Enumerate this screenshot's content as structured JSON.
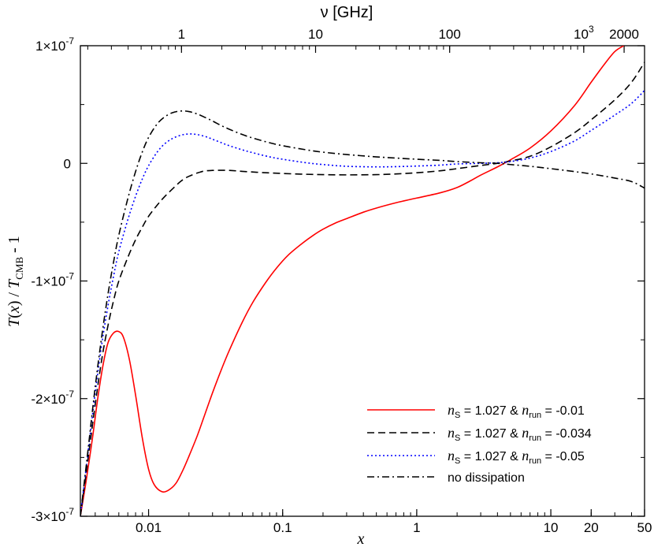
{
  "chart_data": {
    "type": "line",
    "title": "",
    "top_axis_title": "ν  [GHz]",
    "xlabel": "x",
    "ylabel": "T(x) / T_CMB - 1",
    "ylabel_parts": {
      "t": "T",
      "open": "(",
      "x": "x",
      "close": ")",
      "slash": " / ",
      "t2": "T",
      "sub": "CMB",
      "tail": " - 1"
    },
    "x_scale": "log",
    "xlim": [
      0.0031,
      50
    ],
    "ylim": [
      -3e-07,
      1e-07
    ],
    "x_ticks": [
      {
        "value": 0.01,
        "label": "0.01"
      },
      {
        "value": 0.1,
        "label": "0.1"
      },
      {
        "value": 1,
        "label": "1"
      },
      {
        "value": 10,
        "label": "10"
      },
      {
        "value": 20,
        "label": "20"
      },
      {
        "value": 50,
        "label": "50"
      }
    ],
    "y_ticks": [
      {
        "value": 1e-07,
        "base": "1×10",
        "exp": "-7"
      },
      {
        "value": 0,
        "base": "0",
        "exp": ""
      },
      {
        "value": -1e-07,
        "base": "-1×10",
        "exp": "-7"
      },
      {
        "value": -2e-07,
        "base": "-2×10",
        "exp": "-7"
      },
      {
        "value": -3e-07,
        "base": "-3×10",
        "exp": "-7"
      }
    ],
    "top_ticks": [
      {
        "x_value": 0.0176,
        "base": "1",
        "exp": ""
      },
      {
        "x_value": 0.176,
        "base": "10",
        "exp": ""
      },
      {
        "x_value": 1.76,
        "base": "100",
        "exp": ""
      },
      {
        "x_value": 17.6,
        "base": "10",
        "exp": "3"
      },
      {
        "x_value": 35.2,
        "base": "2000",
        "exp": ""
      }
    ],
    "series": [
      {
        "name": "n_S = 1.027 & n_run = -0.01",
        "label_parts": {
          "n1": "n",
          "s1": "S",
          "mid": " = 1.027 & ",
          "n2": "n",
          "s2": "run",
          "tail": " = -0.01"
        },
        "color": "#ff0000",
        "dash": "",
        "x": [
          0.0031,
          0.0034,
          0.0038,
          0.0042,
          0.0046,
          0.005,
          0.0055,
          0.006,
          0.0065,
          0.0072,
          0.008,
          0.009,
          0.01,
          0.011,
          0.0125,
          0.014,
          0.016,
          0.018,
          0.02,
          0.023,
          0.026,
          0.03,
          0.035,
          0.04,
          0.05,
          0.06,
          0.075,
          0.09,
          0.11,
          0.14,
          0.17,
          0.2,
          0.25,
          0.3,
          0.4,
          0.5,
          0.7,
          1.0,
          1.5,
          2.0,
          2.5,
          3.0,
          4.0,
          5.0,
          7.0,
          10.0,
          15.0,
          20.0,
          25.0,
          30.0,
          35.0
        ],
        "y": [
          -3e-07,
          -2.72e-07,
          -2.35e-07,
          -1.98e-07,
          -1.7e-07,
          -1.52e-07,
          -1.44e-07,
          -1.43e-07,
          -1.48e-07,
          -1.67e-07,
          -1.97e-07,
          -2.34e-07,
          -2.6e-07,
          -2.73e-07,
          -2.79e-07,
          -2.78e-07,
          -2.72e-07,
          -2.61e-07,
          -2.49e-07,
          -2.32e-07,
          -2.15e-07,
          -1.95e-07,
          -1.75e-07,
          -1.59e-07,
          -1.35e-07,
          -1.18e-07,
          -1.01e-07,
          -8.9e-08,
          -7.8e-08,
          -6.8e-08,
          -6.1e-08,
          -5.6e-08,
          -5.05e-08,
          -4.7e-08,
          -4.15e-08,
          -3.8e-08,
          -3.35e-08,
          -2.95e-08,
          -2.5e-08,
          -2.05e-08,
          -1.5e-08,
          -1e-08,
          -3e-09,
          3e-09,
          1.3e-08,
          2.75e-08,
          4.9e-08,
          6.9e-08,
          8.4e-08,
          9.5e-08,
          1e-07
        ]
      },
      {
        "name": "n_S = 1.027 & n_run = -0.034",
        "label_parts": {
          "n1": "n",
          "s1": "S",
          "mid": " = 1.027 & ",
          "n2": "n",
          "s2": "run",
          "tail": " = -0.034"
        },
        "color": "#000000",
        "dash": "9,5",
        "x": [
          0.0031,
          0.0035,
          0.004,
          0.0045,
          0.005,
          0.0055,
          0.006,
          0.007,
          0.008,
          0.009,
          0.01,
          0.0115,
          0.013,
          0.015,
          0.0175,
          0.02,
          0.025,
          0.03,
          0.04,
          0.05,
          0.07,
          0.1,
          0.15,
          0.2,
          0.3,
          0.5,
          0.7,
          1.0,
          1.5,
          2.0,
          3.0,
          4.0,
          5.0,
          7.0,
          10.0,
          15.0,
          20.0,
          30.0,
          40.0,
          50.0
        ],
        "y": [
          -3e-07,
          -2.55e-07,
          -2.05e-07,
          -1.65e-07,
          -1.37e-07,
          -1.16e-07,
          -1e-07,
          -8e-08,
          -6.5e-08,
          -5.4e-08,
          -4.5e-08,
          -3.6e-08,
          -2.9e-08,
          -2.2e-08,
          -1.5e-08,
          -1.1e-08,
          -7e-09,
          -6e-09,
          -6e-09,
          -6.8e-09,
          -7.8e-09,
          -8.6e-09,
          -9.3e-09,
          -9.6e-09,
          -9.8e-09,
          -9.6e-09,
          -9e-09,
          -8e-09,
          -6.3e-09,
          -4.5e-09,
          -1.8e-09,
          0.0,
          2e-09,
          6e-09,
          1.4e-08,
          2.6e-08,
          3.7e-08,
          5.4e-08,
          6.9e-08,
          8.6e-08
        ]
      },
      {
        "name": "n_S = 1.027 & n_run = -0.05",
        "label_parts": {
          "n1": "n",
          "s1": "S",
          "mid": " = 1.027 & ",
          "n2": "n",
          "s2": "run",
          "tail": " = -0.05"
        },
        "color": "#0000ff",
        "dash": "2,3",
        "x": [
          0.0031,
          0.0035,
          0.004,
          0.0045,
          0.005,
          0.0055,
          0.006,
          0.007,
          0.008,
          0.009,
          0.01,
          0.0115,
          0.013,
          0.015,
          0.0175,
          0.02,
          0.023,
          0.027,
          0.03,
          0.035,
          0.04,
          0.05,
          0.06,
          0.08,
          0.1,
          0.15,
          0.2,
          0.3,
          0.5,
          0.7,
          1.0,
          1.5,
          2.0,
          3.0,
          4.0,
          5.0,
          7.0,
          10.0,
          15.0,
          20.0,
          30.0,
          40.0,
          50.0
        ],
        "y": [
          -3e-07,
          -2.5e-07,
          -1.95e-07,
          -1.52e-07,
          -1.2e-07,
          -9.5e-08,
          -7.5e-08,
          -4.8e-08,
          -2.8e-08,
          -1.3e-08,
          -2e-09,
          9e-09,
          1.6e-08,
          2.1e-08,
          2.4e-08,
          2.5e-08,
          2.45e-08,
          2.25e-08,
          2.05e-08,
          1.75e-08,
          1.5e-08,
          1.15e-08,
          9e-09,
          5.5e-09,
          3.5e-09,
          5e-10,
          -1e-09,
          -2.5e-09,
          -3e-09,
          -2.8e-09,
          -2.3e-09,
          -1.5e-09,
          -5e-10,
          0.0,
          5e-10,
          1.5e-09,
          4.5e-09,
          1e-08,
          1.9e-08,
          2.8e-08,
          4.1e-08,
          5.1e-08,
          6.2e-08
        ]
      },
      {
        "name": "no dissipation",
        "label_parts": {
          "n1": "",
          "s1": "",
          "mid": "no dissipation",
          "n2": "",
          "s2": "",
          "tail": ""
        },
        "color": "#000000",
        "dash": "9,4,2,4",
        "x": [
          0.0031,
          0.0035,
          0.004,
          0.0045,
          0.005,
          0.0055,
          0.006,
          0.007,
          0.008,
          0.009,
          0.01,
          0.0115,
          0.013,
          0.015,
          0.0175,
          0.02,
          0.023,
          0.027,
          0.03,
          0.035,
          0.04,
          0.05,
          0.06,
          0.08,
          0.1,
          0.15,
          0.2,
          0.3,
          0.5,
          0.7,
          1.0,
          1.5,
          2.0,
          3.0,
          4.0,
          5.0,
          7.0,
          10.0,
          15.0,
          20.0,
          30.0,
          40.0,
          50.0
        ],
        "y": [
          -3e-07,
          -2.48e-07,
          -1.9e-07,
          -1.45e-07,
          -1.1e-07,
          -8.3e-08,
          -6.1e-08,
          -3e-08,
          -7e-09,
          1e-08,
          2.2e-08,
          3.3e-08,
          3.9e-08,
          4.3e-08,
          4.45e-08,
          4.4e-08,
          4.2e-08,
          3.85e-08,
          3.6e-08,
          3.2e-08,
          2.9e-08,
          2.45e-08,
          2.15e-08,
          1.75e-08,
          1.5e-08,
          1.15e-08,
          9.5e-09,
          7.5e-09,
          5.5e-09,
          4.5e-09,
          3.5e-09,
          2.5e-09,
          1.5e-09,
          5e-10,
          0.0,
          -1e-09,
          -2.5e-09,
          -4.5e-09,
          -7e-09,
          -9e-09,
          -1.25e-08,
          -1.55e-08,
          -2.1e-08
        ]
      }
    ],
    "legend_position": "bottom-right"
  }
}
